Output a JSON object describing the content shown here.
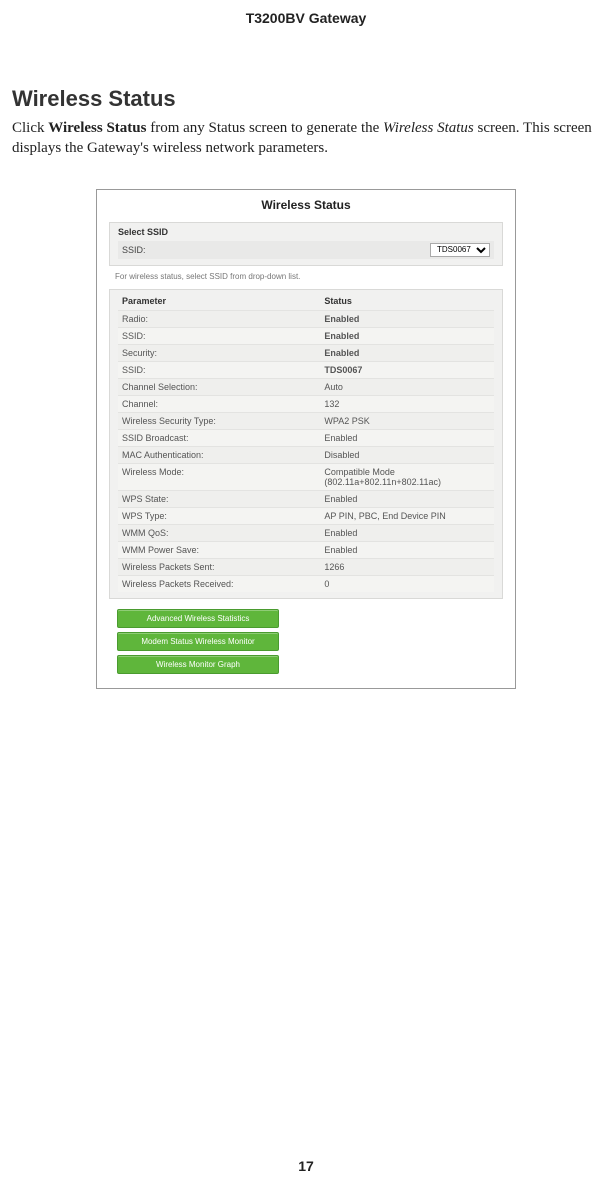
{
  "doc": {
    "header": "T3200BV Gateway",
    "page_number": "17",
    "section_title": "Wireless Status",
    "body_pre": "Click ",
    "body_bold": "Wireless Status",
    "body_mid": " from any Status screen to generate the ",
    "body_ital": "Wireless Status",
    "body_post": " screen. This screen displays the Gateway's wireless network parameters."
  },
  "screenshot": {
    "title": "Wireless Status",
    "select_panel": {
      "header": "Select SSID",
      "ssid_label": "SSID:",
      "ssid_value": "TDS0067",
      "help_text": "For wireless status, select SSID from drop-down list."
    },
    "param_table": {
      "head_param": "Parameter",
      "head_status": "Status",
      "rows": [
        {
          "param": "Radio:",
          "status": "Enabled",
          "green": true
        },
        {
          "param": "SSID:",
          "status": "Enabled",
          "green": true
        },
        {
          "param": "Security:",
          "status": "Enabled",
          "green": true
        },
        {
          "param": "SSID:",
          "status": "TDS0067",
          "green": true
        },
        {
          "param": "Channel Selection:",
          "status": "Auto",
          "green": false
        },
        {
          "param": "Channel:",
          "status": "132",
          "green": false
        },
        {
          "param": "Wireless Security Type:",
          "status": "WPA2 PSK",
          "green": false
        },
        {
          "param": "SSID Broadcast:",
          "status": "Enabled",
          "green": false
        },
        {
          "param": "MAC Authentication:",
          "status": "Disabled",
          "green": false
        },
        {
          "param": "Wireless Mode:",
          "status": "Compatible Mode (802.11a+802.11n+802.11ac)",
          "green": false
        },
        {
          "param": "WPS State:",
          "status": "Enabled",
          "green": false
        },
        {
          "param": "WPS Type:",
          "status": "AP PIN, PBC, End Device PIN",
          "green": false
        },
        {
          "param": "WMM QoS:",
          "status": "Enabled",
          "green": false
        },
        {
          "param": "WMM Power Save:",
          "status": "Enabled",
          "green": false
        },
        {
          "param": "Wireless Packets Sent:",
          "status": "1266",
          "green": false
        },
        {
          "param": "Wireless Packets Received:",
          "status": "0",
          "green": false
        }
      ]
    },
    "buttons": [
      "Advanced Wireless Statistics",
      "Modem Status Wireless Monitor",
      "Wireless Monitor Graph"
    ],
    "colors": {
      "button_bg": "#5fb63b",
      "button_border": "#4a9b2f",
      "green_text": "#4a9b2f",
      "panel_bg": "#f1f1f0",
      "row_alt_bg": "#efefed"
    }
  }
}
